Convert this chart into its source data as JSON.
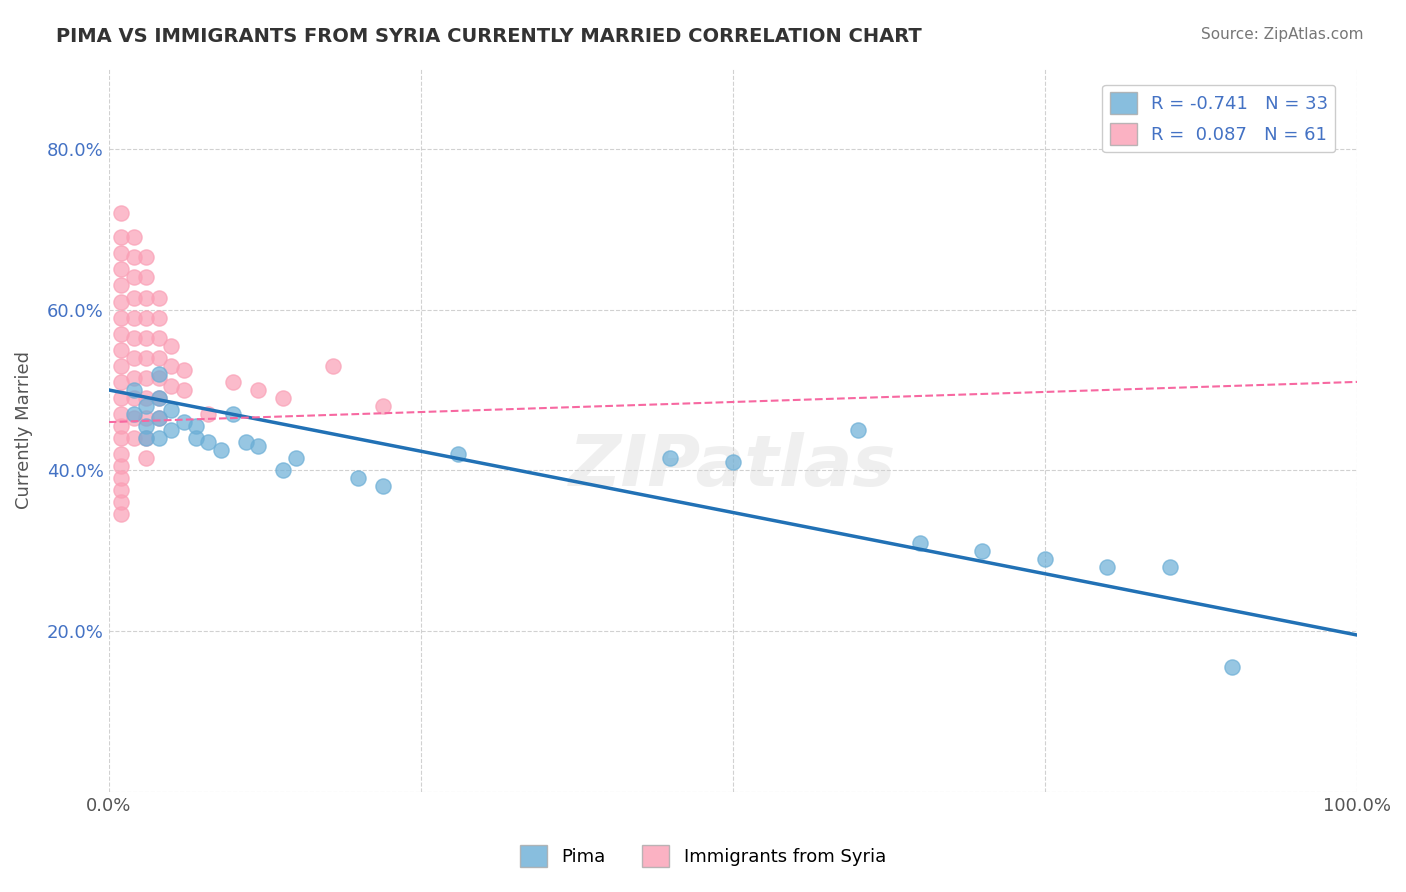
{
  "title": "PIMA VS IMMIGRANTS FROM SYRIA CURRENTLY MARRIED CORRELATION CHART",
  "source": "Source: ZipAtlas.com",
  "ylabel": "Currently Married",
  "xlim": [
    0.0,
    1.0
  ],
  "ylim": [
    0.0,
    0.9
  ],
  "legend_r1": "R = -0.741",
  "legend_n1": "N = 33",
  "legend_r2": "R =  0.087",
  "legend_n2": "N = 61",
  "color_blue": "#6baed6",
  "color_pink": "#fa9fb5",
  "trendline_blue": [
    [
      0.0,
      0.5
    ],
    [
      1.0,
      0.195
    ]
  ],
  "trendline_pink": [
    [
      0.0,
      0.46
    ],
    [
      1.0,
      0.51
    ]
  ],
  "pima_points": [
    [
      0.02,
      0.5
    ],
    [
      0.02,
      0.47
    ],
    [
      0.03,
      0.48
    ],
    [
      0.03,
      0.455
    ],
    [
      0.03,
      0.44
    ],
    [
      0.04,
      0.52
    ],
    [
      0.04,
      0.49
    ],
    [
      0.04,
      0.465
    ],
    [
      0.04,
      0.44
    ],
    [
      0.05,
      0.475
    ],
    [
      0.05,
      0.45
    ],
    [
      0.06,
      0.46
    ],
    [
      0.07,
      0.455
    ],
    [
      0.07,
      0.44
    ],
    [
      0.08,
      0.435
    ],
    [
      0.09,
      0.425
    ],
    [
      0.1,
      0.47
    ],
    [
      0.11,
      0.435
    ],
    [
      0.12,
      0.43
    ],
    [
      0.14,
      0.4
    ],
    [
      0.15,
      0.415
    ],
    [
      0.2,
      0.39
    ],
    [
      0.22,
      0.38
    ],
    [
      0.28,
      0.42
    ],
    [
      0.45,
      0.415
    ],
    [
      0.5,
      0.41
    ],
    [
      0.6,
      0.45
    ],
    [
      0.65,
      0.31
    ],
    [
      0.7,
      0.3
    ],
    [
      0.75,
      0.29
    ],
    [
      0.8,
      0.28
    ],
    [
      0.85,
      0.28
    ],
    [
      0.9,
      0.155
    ]
  ],
  "syria_points": [
    [
      0.01,
      0.72
    ],
    [
      0.01,
      0.69
    ],
    [
      0.01,
      0.67
    ],
    [
      0.01,
      0.65
    ],
    [
      0.01,
      0.63
    ],
    [
      0.01,
      0.61
    ],
    [
      0.01,
      0.59
    ],
    [
      0.01,
      0.57
    ],
    [
      0.01,
      0.55
    ],
    [
      0.01,
      0.53
    ],
    [
      0.01,
      0.51
    ],
    [
      0.01,
      0.49
    ],
    [
      0.01,
      0.47
    ],
    [
      0.01,
      0.455
    ],
    [
      0.01,
      0.44
    ],
    [
      0.01,
      0.42
    ],
    [
      0.01,
      0.405
    ],
    [
      0.01,
      0.39
    ],
    [
      0.01,
      0.375
    ],
    [
      0.01,
      0.36
    ],
    [
      0.01,
      0.345
    ],
    [
      0.02,
      0.69
    ],
    [
      0.02,
      0.665
    ],
    [
      0.02,
      0.64
    ],
    [
      0.02,
      0.615
    ],
    [
      0.02,
      0.59
    ],
    [
      0.02,
      0.565
    ],
    [
      0.02,
      0.54
    ],
    [
      0.02,
      0.515
    ],
    [
      0.02,
      0.49
    ],
    [
      0.02,
      0.465
    ],
    [
      0.02,
      0.44
    ],
    [
      0.03,
      0.665
    ],
    [
      0.03,
      0.64
    ],
    [
      0.03,
      0.615
    ],
    [
      0.03,
      0.59
    ],
    [
      0.03,
      0.565
    ],
    [
      0.03,
      0.54
    ],
    [
      0.03,
      0.515
    ],
    [
      0.03,
      0.49
    ],
    [
      0.03,
      0.465
    ],
    [
      0.03,
      0.44
    ],
    [
      0.03,
      0.415
    ],
    [
      0.04,
      0.615
    ],
    [
      0.04,
      0.59
    ],
    [
      0.04,
      0.565
    ],
    [
      0.04,
      0.54
    ],
    [
      0.04,
      0.515
    ],
    [
      0.04,
      0.49
    ],
    [
      0.04,
      0.465
    ],
    [
      0.05,
      0.555
    ],
    [
      0.05,
      0.53
    ],
    [
      0.05,
      0.505
    ],
    [
      0.06,
      0.525
    ],
    [
      0.06,
      0.5
    ],
    [
      0.08,
      0.47
    ],
    [
      0.1,
      0.51
    ],
    [
      0.12,
      0.5
    ],
    [
      0.14,
      0.49
    ],
    [
      0.18,
      0.53
    ],
    [
      0.22,
      0.48
    ]
  ],
  "watermark": "ZIPatlas",
  "background_color": "#ffffff",
  "grid_color": "#cccccc",
  "title_fontsize": 14,
  "source_fontsize": 11,
  "tick_fontsize": 13,
  "label_fontsize": 13,
  "legend_fontsize": 13,
  "scatter_size": 120,
  "scatter_alpha": 0.7
}
